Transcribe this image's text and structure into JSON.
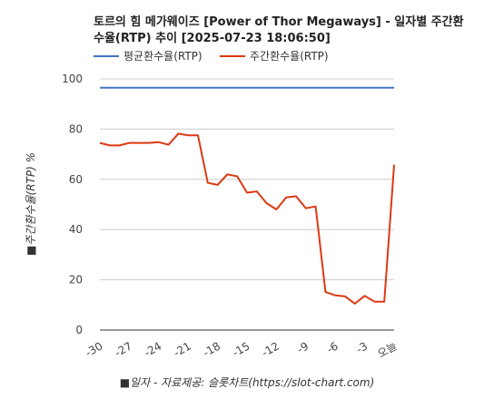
{
  "chart_data": {
    "type": "line",
    "title_line1": "토르의 힘 메가웨이즈 [Power of Thor Megaways] - 일자별 주간환",
    "title_line2": "수율(RTP) 추이 [2025-07-23 18:06:50]",
    "xlabel": "■일자 - 자료제공: 슬롯차트(https://slot-chart.com)",
    "ylabel": "■주간환수율(RTP) %",
    "ylim": [
      0,
      100
    ],
    "yticks": [
      0,
      20,
      40,
      60,
      80,
      100
    ],
    "xlim": [
      -30,
      0
    ],
    "xticks": [
      {
        "v": -30,
        "label": "-30"
      },
      {
        "v": -27,
        "label": "-27"
      },
      {
        "v": -24,
        "label": "-24"
      },
      {
        "v": -21,
        "label": "-21"
      },
      {
        "v": -18,
        "label": "-18"
      },
      {
        "v": -15,
        "label": "-15"
      },
      {
        "v": -12,
        "label": "-12"
      },
      {
        "v": -9,
        "label": "-9"
      },
      {
        "v": -6,
        "label": "-6"
      },
      {
        "v": -3,
        "label": "-3"
      },
      {
        "v": 0,
        "label": "오늘"
      }
    ],
    "grid": true,
    "legend_position": "top-left",
    "series": [
      {
        "name": "평균환수율(RTP)",
        "color": "#4472c4",
        "x": [
          -30,
          0
        ],
        "values": [
          96.5,
          96.5
        ]
      },
      {
        "name": "주간환수율(RTP)",
        "color": "#dc3912",
        "x": [
          -30,
          -29,
          -28,
          -27,
          -26,
          -25,
          -24,
          -23,
          -22,
          -21,
          -20,
          -19,
          -18,
          -17,
          -16,
          -15,
          -14,
          -13,
          -12,
          -11,
          -10,
          -9,
          -8,
          -7,
          -6,
          -5,
          -4,
          -3,
          -2,
          -1,
          0
        ],
        "values": [
          74.5,
          73.5,
          73.5,
          74.5,
          74.5,
          74.5,
          74.8,
          73.8,
          78.2,
          77.5,
          77.5,
          58.6,
          57.8,
          62.0,
          61.2,
          54.7,
          55.2,
          50.5,
          48.0,
          52.8,
          53.3,
          48.5,
          49.2,
          15.2,
          13.8,
          13.4,
          10.5,
          13.6,
          11.3,
          11.3,
          65.8
        ]
      }
    ]
  }
}
